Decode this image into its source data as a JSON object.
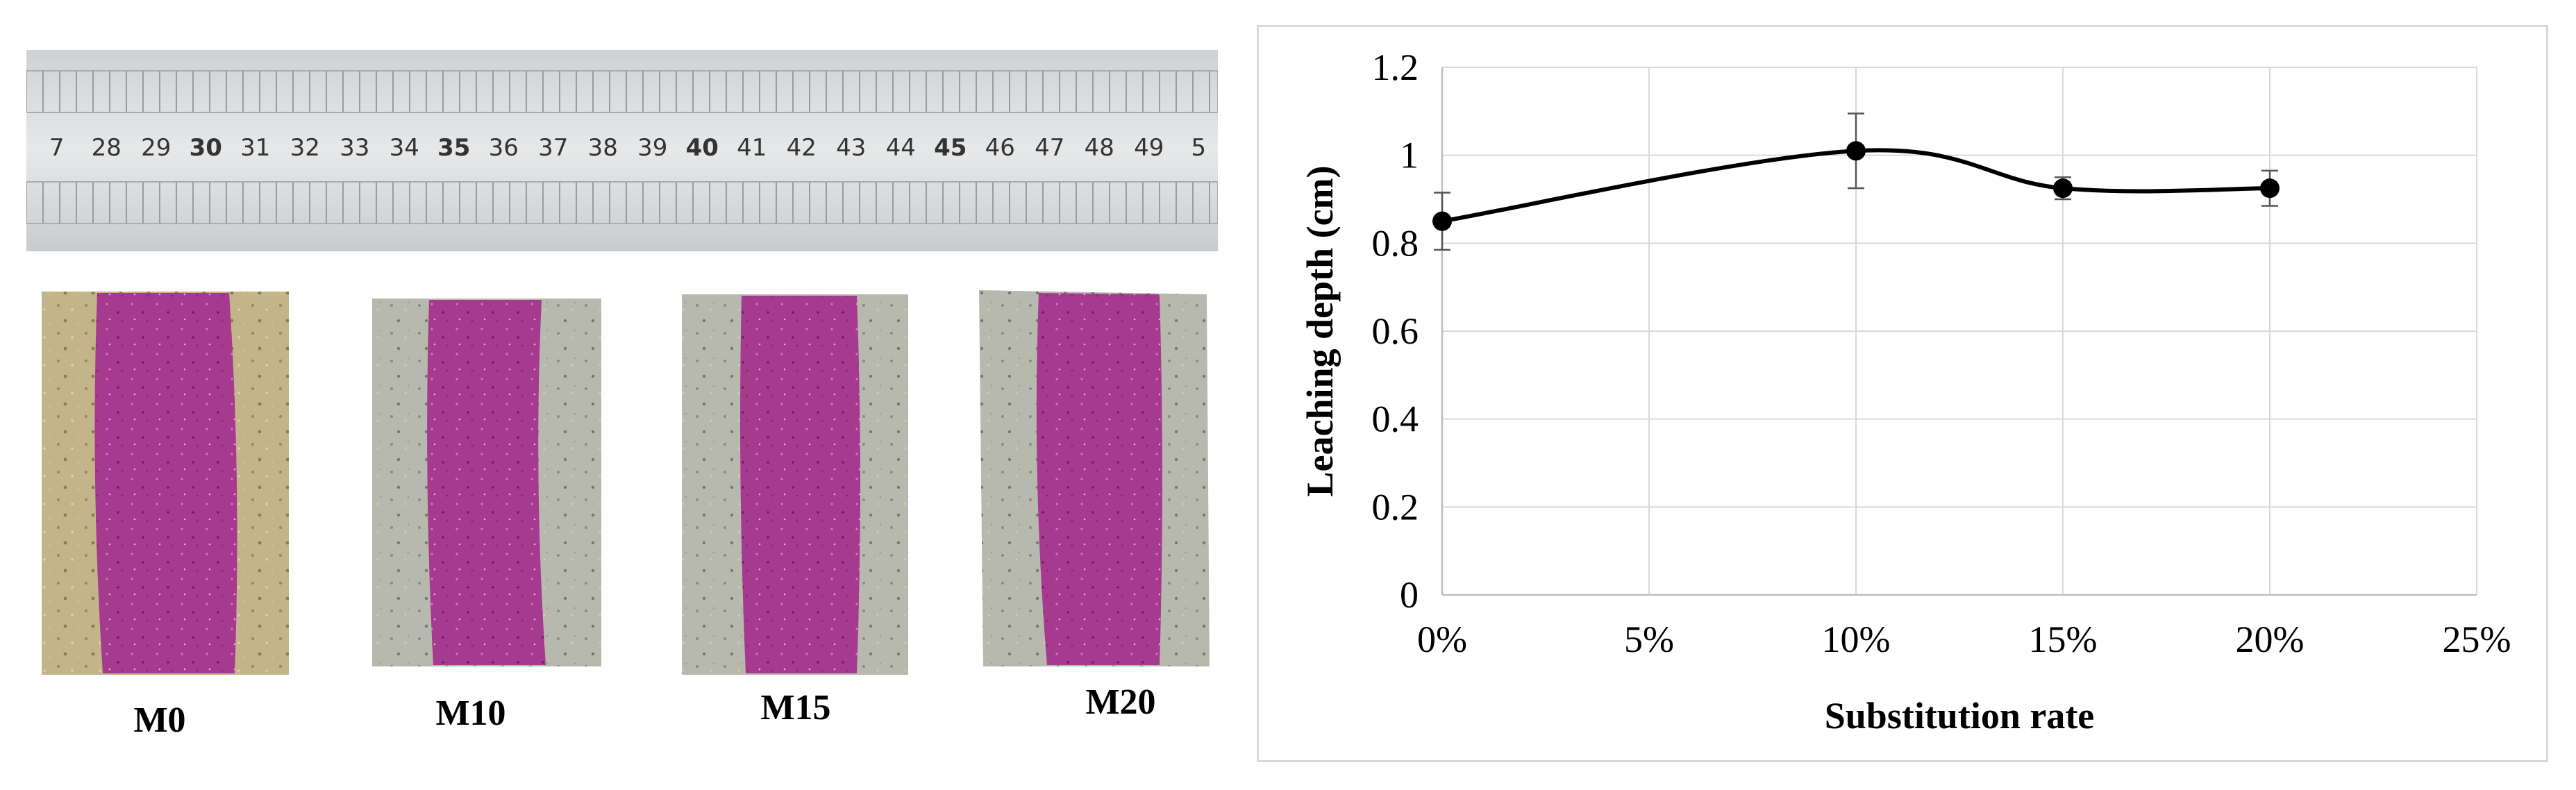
{
  "photo": {
    "ruler_numbers": [
      "7",
      "28",
      "29",
      "30",
      "31",
      "32",
      "33",
      "34",
      "35",
      "36",
      "37",
      "38",
      "39",
      "40",
      "41",
      "42",
      "43",
      "44",
      "45",
      "46",
      "47",
      "48",
      "49",
      "5"
    ],
    "samples": [
      {
        "label": "M0"
      },
      {
        "label": "M10"
      },
      {
        "label": "M15"
      },
      {
        "label": "M20"
      }
    ]
  },
  "chart_data": {
    "type": "line",
    "xlabel": "Substitution rate",
    "ylabel": "Leaching depth (cm)",
    "x": [
      "0%",
      "10%",
      "15%",
      "20%"
    ],
    "x_values": [
      0,
      10,
      15,
      20
    ],
    "xlim": [
      0,
      25
    ],
    "x_ticks": [
      "0%",
      "5%",
      "10%",
      "15%",
      "20%",
      "25%"
    ],
    "ylim": [
      0,
      1.2
    ],
    "y_ticks": [
      "0",
      "0.2",
      "0.4",
      "0.6",
      "0.8",
      "1",
      "1.2"
    ],
    "series": [
      {
        "values": [
          0.85,
          1.01,
          0.925,
          0.925
        ],
        "error": [
          0.065,
          0.085,
          0.025,
          0.04
        ],
        "color": "#000000"
      }
    ],
    "grid": true,
    "smooth": true
  }
}
